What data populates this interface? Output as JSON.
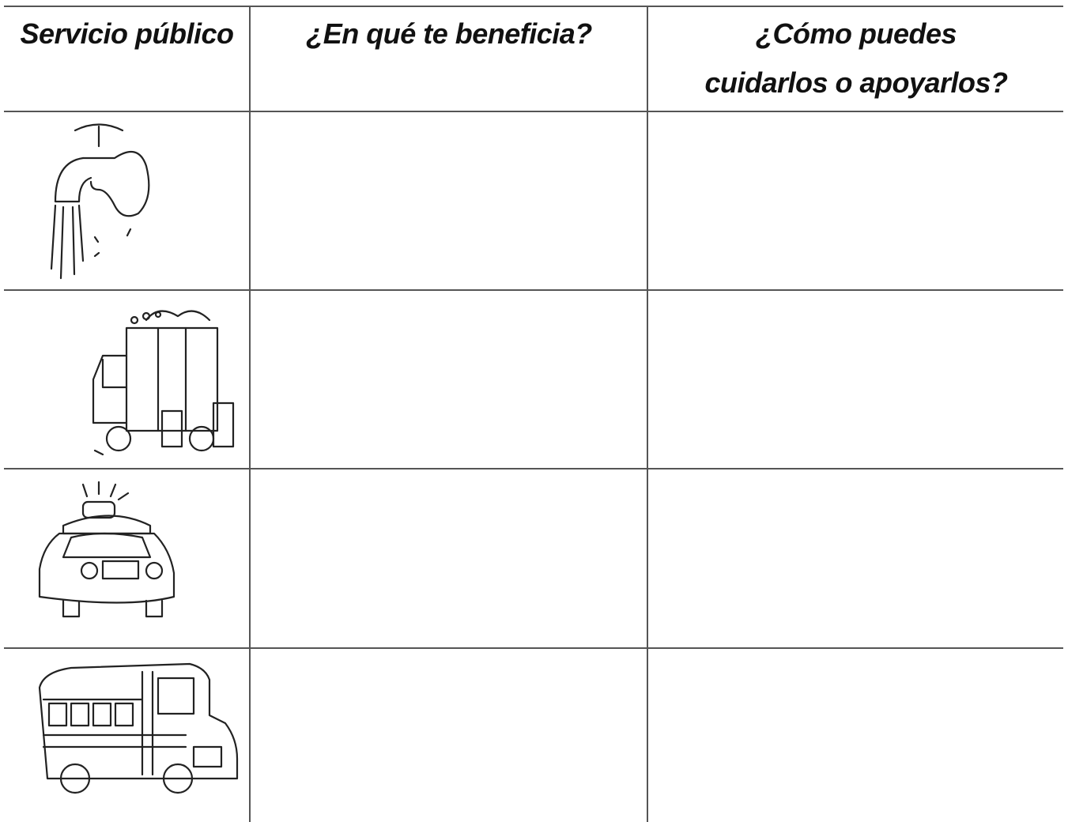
{
  "header": {
    "columns": [
      "Servicio público",
      "¿En qué te beneficia?",
      [
        "¿Cómo puedes",
        "cuidarlos o apoyarlos?"
      ]
    ]
  }
}
